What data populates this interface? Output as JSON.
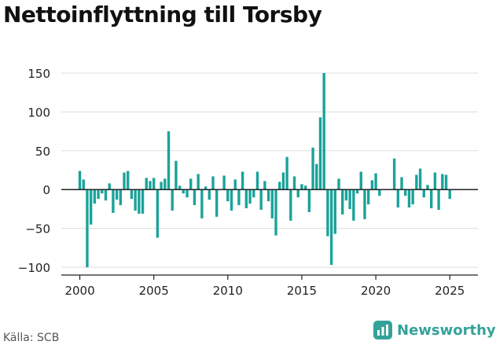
{
  "title": "Nettoinflyttning till Torsby",
  "source": "Källa: SCB",
  "brand": {
    "name": "Newsworthy",
    "icon": "newsworthy-logo-icon"
  },
  "colors": {
    "bar": "#1aa39a",
    "grid": "#dddddd",
    "zero_line": "#222222",
    "text": "#222222"
  },
  "chart_data": {
    "type": "bar",
    "title": "Nettoinflyttning till Torsby",
    "xlabel": "",
    "ylabel": "",
    "ylim": [
      -110,
      155
    ],
    "xlim": [
      1998.75,
      2026.9
    ],
    "yticks": [
      150,
      100,
      50,
      0,
      -50,
      -100
    ],
    "ytick_labels": [
      "150",
      "100",
      "50",
      "0",
      "−50",
      "−100"
    ],
    "xticks": [
      2000,
      2005,
      2010,
      2015,
      2020,
      2025
    ],
    "xtick_labels": [
      "2000",
      "2005",
      "2010",
      "2015",
      "2020",
      "2025"
    ],
    "grid": true,
    "frequency": "quarterly",
    "x_start": 2000.0,
    "values": [
      24,
      13,
      -100,
      -45,
      -18,
      -12,
      -5,
      -14,
      8,
      -30,
      -13,
      -20,
      22,
      24,
      -12,
      -27,
      -31,
      -31,
      15,
      11,
      15,
      -62,
      10,
      14,
      75,
      -27,
      37,
      5,
      -5,
      -10,
      14,
      -20,
      20,
      -37,
      4,
      -13,
      17,
      -35,
      0,
      18,
      -15,
      -27,
      13,
      -20,
      23,
      -24,
      -18,
      -10,
      23,
      -26,
      11,
      -15,
      -37,
      -59,
      10,
      22,
      42,
      -40,
      17,
      -10,
      7,
      5,
      -29,
      54,
      33,
      93,
      150,
      -60,
      -97,
      -57,
      14,
      -32,
      -14,
      -25,
      -40,
      -5,
      23,
      -38,
      -19,
      12,
      21,
      -8,
      0,
      0,
      0,
      40,
      -23,
      16,
      -8,
      -23,
      -19,
      19,
      27,
      -10,
      6,
      -24,
      22,
      -26,
      20,
      19,
      -12
    ]
  }
}
